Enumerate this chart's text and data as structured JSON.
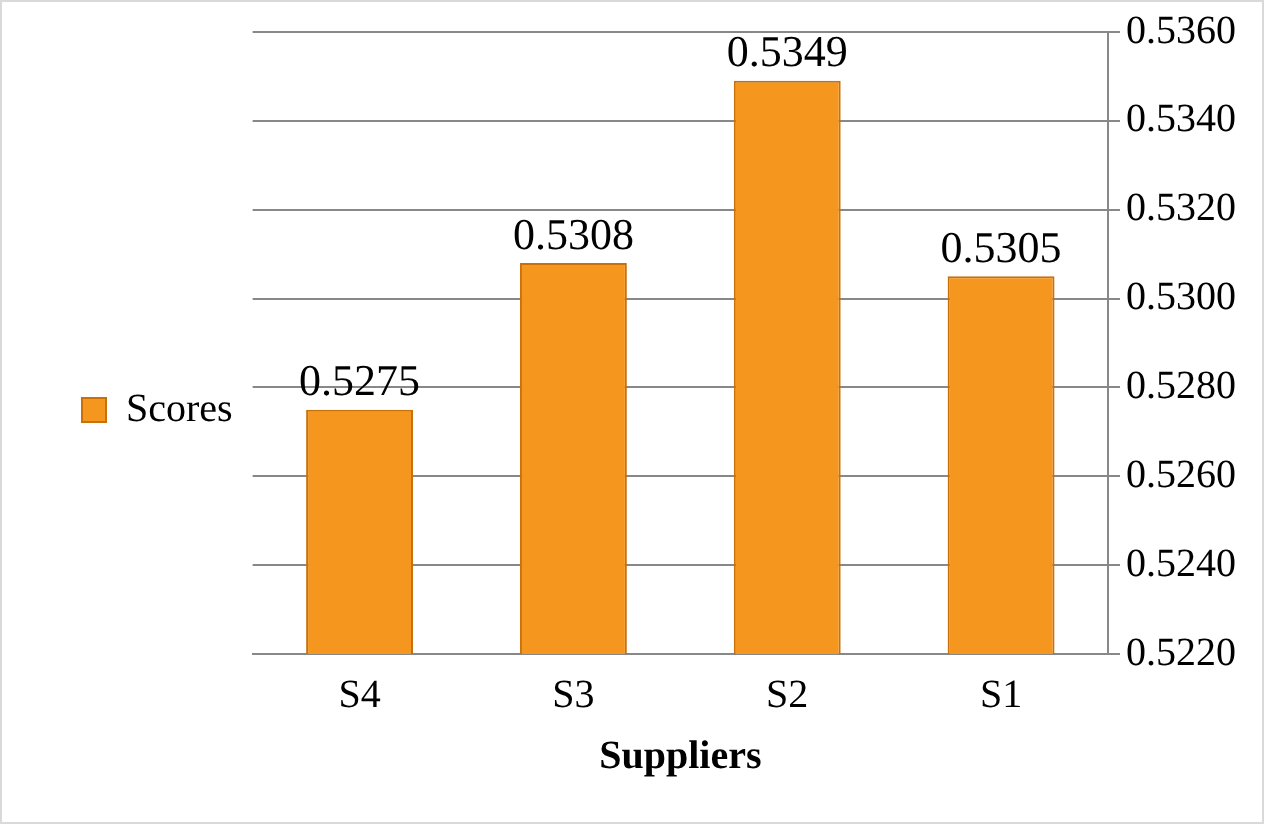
{
  "chart_data": {
    "type": "bar",
    "xlabel": "Suppliers",
    "categories": [
      "S4",
      "S3",
      "S2",
      "S1"
    ],
    "series": [
      {
        "name": "Scores",
        "color": "#f5961e",
        "values": [
          0.5275,
          0.5308,
          0.5349,
          0.5305
        ]
      }
    ],
    "ylim": [
      0.522,
      0.536
    ],
    "yticks": [
      {
        "value": 0.522,
        "label": "0.5220"
      },
      {
        "value": 0.524,
        "label": "0.5240"
      },
      {
        "value": 0.526,
        "label": "0.5260"
      },
      {
        "value": 0.528,
        "label": "0.5280"
      },
      {
        "value": 0.53,
        "label": "0.5300"
      },
      {
        "value": 0.532,
        "label": "0.5320"
      },
      {
        "value": 0.534,
        "label": "0.5340"
      },
      {
        "value": 0.536,
        "label": "0.5360"
      }
    ],
    "grid": "y",
    "legend": "left",
    "data_labels": true
  }
}
